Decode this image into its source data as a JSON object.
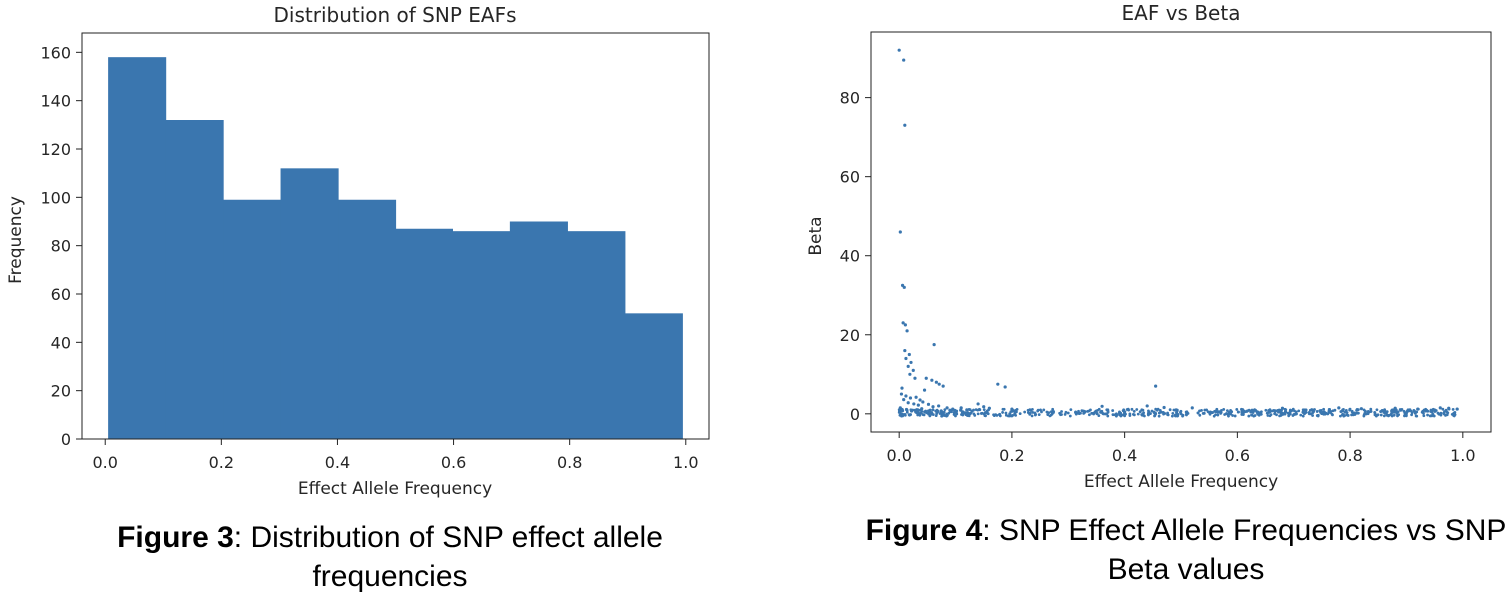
{
  "chart_data": [
    {
      "type": "bar",
      "title": "Distribution of SNP EAFs",
      "xlabel": "Effect Allele Frequency",
      "ylabel": "Frequency",
      "xlim": [
        -0.04,
        1.04
      ],
      "ylim": [
        0,
        168
      ],
      "xticks": [
        "0.0",
        "0.2",
        "0.4",
        "0.6",
        "0.8",
        "1.0"
      ],
      "yticks": [
        "0",
        "20",
        "40",
        "60",
        "80",
        "100",
        "120",
        "140",
        "160"
      ],
      "bin_edges": [
        0.005,
        0.104,
        0.203,
        0.302,
        0.401,
        0.5,
        0.598,
        0.697,
        0.796,
        0.895,
        0.994
      ],
      "values": [
        158,
        132,
        99,
        112,
        99,
        87,
        86,
        90,
        86,
        52
      ],
      "color": "#3a76af"
    },
    {
      "type": "scatter",
      "title": "EAF vs Beta",
      "xlabel": "Effect Allele Frequency",
      "ylabel": "Beta",
      "xlim": [
        -0.05,
        1.05
      ],
      "ylim": [
        -4.6,
        96.6
      ],
      "xticks": [
        "0.0",
        "0.2",
        "0.4",
        "0.6",
        "0.8",
        "1.0"
      ],
      "yticks": [
        "0",
        "20",
        "40",
        "60",
        "80"
      ],
      "color": "#3a76af",
      "points": [
        [
          0.0,
          92
        ],
        [
          0.008,
          89.5
        ],
        [
          0.01,
          73
        ],
        [
          0.002,
          46
        ],
        [
          0.006,
          32.5
        ],
        [
          0.009,
          32
        ],
        [
          0.007,
          23
        ],
        [
          0.011,
          22.5
        ],
        [
          0.014,
          21
        ],
        [
          0.01,
          16
        ],
        [
          0.018,
          15
        ],
        [
          0.012,
          14
        ],
        [
          0.021,
          13
        ],
        [
          0.016,
          12
        ],
        [
          0.025,
          11
        ],
        [
          0.019,
          10
        ],
        [
          0.028,
          9
        ],
        [
          0.062,
          17.5
        ],
        [
          0.048,
          9
        ],
        [
          0.058,
          8.5
        ],
        [
          0.066,
          8
        ],
        [
          0.071,
          7.5
        ],
        [
          0.078,
          7
        ],
        [
          0.045,
          6
        ],
        [
          0.005,
          6.5
        ],
        [
          0.004,
          5
        ],
        [
          0.012,
          4.5
        ],
        [
          0.02,
          4
        ],
        [
          0.03,
          4.2
        ],
        [
          0.037,
          3.5
        ],
        [
          0.042,
          3
        ],
        [
          0.008,
          3.6
        ],
        [
          0.016,
          2.8
        ],
        [
          0.026,
          2.5
        ],
        [
          0.034,
          2.2
        ],
        [
          0.052,
          2.4
        ],
        [
          0.06,
          1.8
        ],
        [
          0.07,
          2
        ],
        [
          0.085,
          1.5
        ],
        [
          0.095,
          1.2
        ],
        [
          0.11,
          1.5
        ],
        [
          0.12,
          1.0
        ],
        [
          0.14,
          2.5
        ],
        [
          0.15,
          1.8
        ],
        [
          0.175,
          7.5
        ],
        [
          0.188,
          6.8
        ],
        [
          0.16,
          1.4
        ],
        [
          0.2,
          1.2
        ],
        [
          0.455,
          7
        ],
        [
          0.04,
          1.3
        ],
        [
          0.055,
          0.9
        ],
        [
          0.002,
          1.5
        ],
        [
          0.006,
          0.8
        ],
        [
          0.013,
          1.1
        ],
        [
          0.022,
          0.7
        ],
        [
          0.033,
          1.0
        ],
        [
          0.075,
          0.6
        ],
        [
          0.09,
          0.9
        ],
        [
          0.1,
          0.4
        ],
        [
          0.36,
          1.9
        ],
        [
          0.44,
          2.0
        ],
        [
          0.47,
          1.6
        ],
        [
          0.52,
          1.5
        ],
        [
          0.68,
          1.4
        ],
        [
          0.78,
          1.5
        ],
        [
          0.82,
          1.3
        ],
        [
          0.88,
          1.4
        ],
        [
          0.92,
          1.2
        ],
        [
          0.96,
          1.5
        ],
        [
          0.975,
          1.4
        ],
        [
          0.99,
          1.2
        ]
      ],
      "baseline_band": {
        "x_start": 0.0,
        "x_end": 0.99,
        "y_min": -0.6,
        "y_max": 1.2
      }
    }
  ],
  "captions": {
    "left": {
      "label": "Figure 3",
      "text": ": Distribution of SNP effect allele frequencies"
    },
    "right": {
      "label": "Figure 4",
      "text": ": SNP Effect Allele Frequencies vs SNP Beta values"
    }
  }
}
